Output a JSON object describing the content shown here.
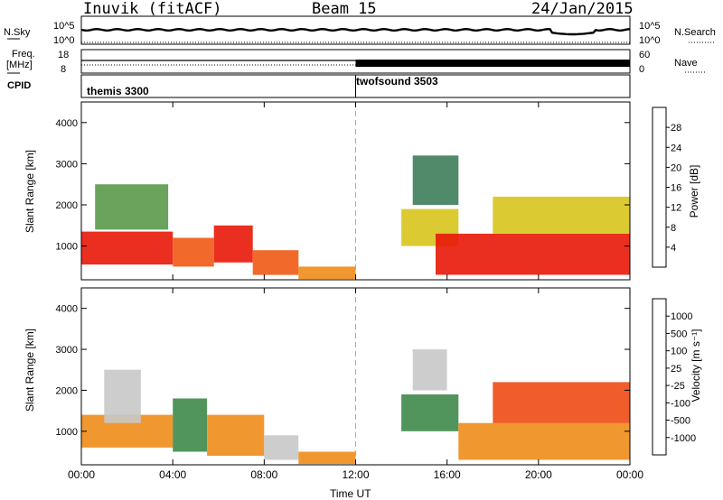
{
  "header": {
    "station": "Inuvik (fitACF)",
    "beam": "Beam 15",
    "date": "24/Jan/2015"
  },
  "aux_panels": {
    "nsky_label": "N.Sky",
    "nsky_ticks": [
      "10^5",
      "10^0"
    ],
    "nsearch_label": "N.Search",
    "nsearch_ticks": [
      "10^5",
      "10^0"
    ],
    "freq_label_1": "Freq.",
    "freq_label_2": "[MHz]",
    "freq_ticks": [
      "18",
      "8"
    ],
    "nave_label": "Nave",
    "nave_ticks": [
      "60",
      "0"
    ],
    "cpid_label": "CPID",
    "cpid_segments": [
      {
        "name": "themis 3300",
        "start_hour": 0
      },
      {
        "name": "twofsound 3503",
        "start_hour": 12
      }
    ]
  },
  "chart_data": [
    {
      "type": "heatmap",
      "title": "",
      "xlabel": "",
      "ylabel": "Slant Range [km]",
      "xlim_hours": [
        0,
        24
      ],
      "ylim_km": [
        180,
        4500
      ],
      "y_ticks": [
        "4000",
        "3000",
        "2000",
        "1000"
      ],
      "colorbar_label": "Power [dB]",
      "colorbar_ticks": [
        "28",
        "24",
        "20",
        "16",
        "12",
        "8",
        "4"
      ],
      "colors": [
        "#0022ee",
        "#2a55b5",
        "#3e7d5a",
        "#5a9a4a",
        "#d8c41c",
        "#f08c1a",
        "#f05a14",
        "#e81808"
      ],
      "regions": [
        {
          "t0": 0.0,
          "t1": 4.0,
          "r0": 550,
          "r1": 1350,
          "level": 7
        },
        {
          "t0": 0.6,
          "t1": 3.8,
          "r0": 1400,
          "r1": 2500,
          "level": 3
        },
        {
          "t0": 4.0,
          "t1": 5.8,
          "r0": 500,
          "r1": 1200,
          "level": 6
        },
        {
          "t0": 5.8,
          "t1": 7.5,
          "r0": 600,
          "r1": 1500,
          "level": 7
        },
        {
          "t0": 7.5,
          "t1": 9.5,
          "r0": 300,
          "r1": 900,
          "level": 6
        },
        {
          "t0": 9.5,
          "t1": 12.0,
          "r0": 200,
          "r1": 500,
          "level": 5
        },
        {
          "t0": 14.0,
          "t1": 16.5,
          "r0": 1000,
          "r1": 1900,
          "level": 4
        },
        {
          "t0": 15.5,
          "t1": 24.0,
          "r0": 300,
          "r1": 1300,
          "level": 7
        },
        {
          "t0": 14.5,
          "t1": 16.5,
          "r0": 2000,
          "r1": 3200,
          "level": 2
        },
        {
          "t0": 18.0,
          "t1": 24.0,
          "r0": 1300,
          "r1": 2200,
          "level": 4
        }
      ]
    },
    {
      "type": "heatmap",
      "title": "",
      "xlabel": "Time UT",
      "ylabel": "Slant Range [km]",
      "xlim_hours": [
        0,
        24
      ],
      "ylim_km": [
        180,
        4500
      ],
      "x_ticks": [
        "00:00",
        "04:00",
        "08:00",
        "12:00",
        "16:00",
        "20:00",
        "00:00"
      ],
      "y_ticks": [
        "4000",
        "3000",
        "2000",
        "1000"
      ],
      "colorbar_label": "Velocity [m s⁻¹]",
      "colorbar_ticks": [
        "1000",
        "500",
        "100",
        "25",
        "-25",
        "-100",
        "-500",
        "-1000"
      ],
      "colors": [
        "#e81808",
        "#f04a14",
        "#f08c1a",
        "#f0b030",
        "#c8c8c8",
        "#5aba3a",
        "#3e8a4a",
        "#2a6ab0",
        "#1a3ac8"
      ],
      "regions": [
        {
          "t0": 0.0,
          "t1": 4.0,
          "r0": 600,
          "r1": 1400,
          "level": 2
        },
        {
          "t0": 1.0,
          "t1": 2.6,
          "r0": 1200,
          "r1": 2500,
          "level": 4
        },
        {
          "t0": 4.0,
          "t1": 5.5,
          "r0": 500,
          "r1": 1800,
          "level": 6
        },
        {
          "t0": 5.5,
          "t1": 8.0,
          "r0": 400,
          "r1": 1400,
          "level": 2
        },
        {
          "t0": 8.0,
          "t1": 9.5,
          "r0": 300,
          "r1": 900,
          "level": 4
        },
        {
          "t0": 9.5,
          "t1": 12.0,
          "r0": 200,
          "r1": 500,
          "level": 2
        },
        {
          "t0": 14.0,
          "t1": 16.5,
          "r0": 1000,
          "r1": 1900,
          "level": 6
        },
        {
          "t0": 16.5,
          "t1": 24.0,
          "r0": 300,
          "r1": 1200,
          "level": 2
        },
        {
          "t0": 18.0,
          "t1": 24.0,
          "r0": 1200,
          "r1": 2200,
          "level": 1
        },
        {
          "t0": 14.5,
          "t1": 16.0,
          "r0": 2000,
          "r1": 3000,
          "level": 4
        }
      ]
    }
  ]
}
